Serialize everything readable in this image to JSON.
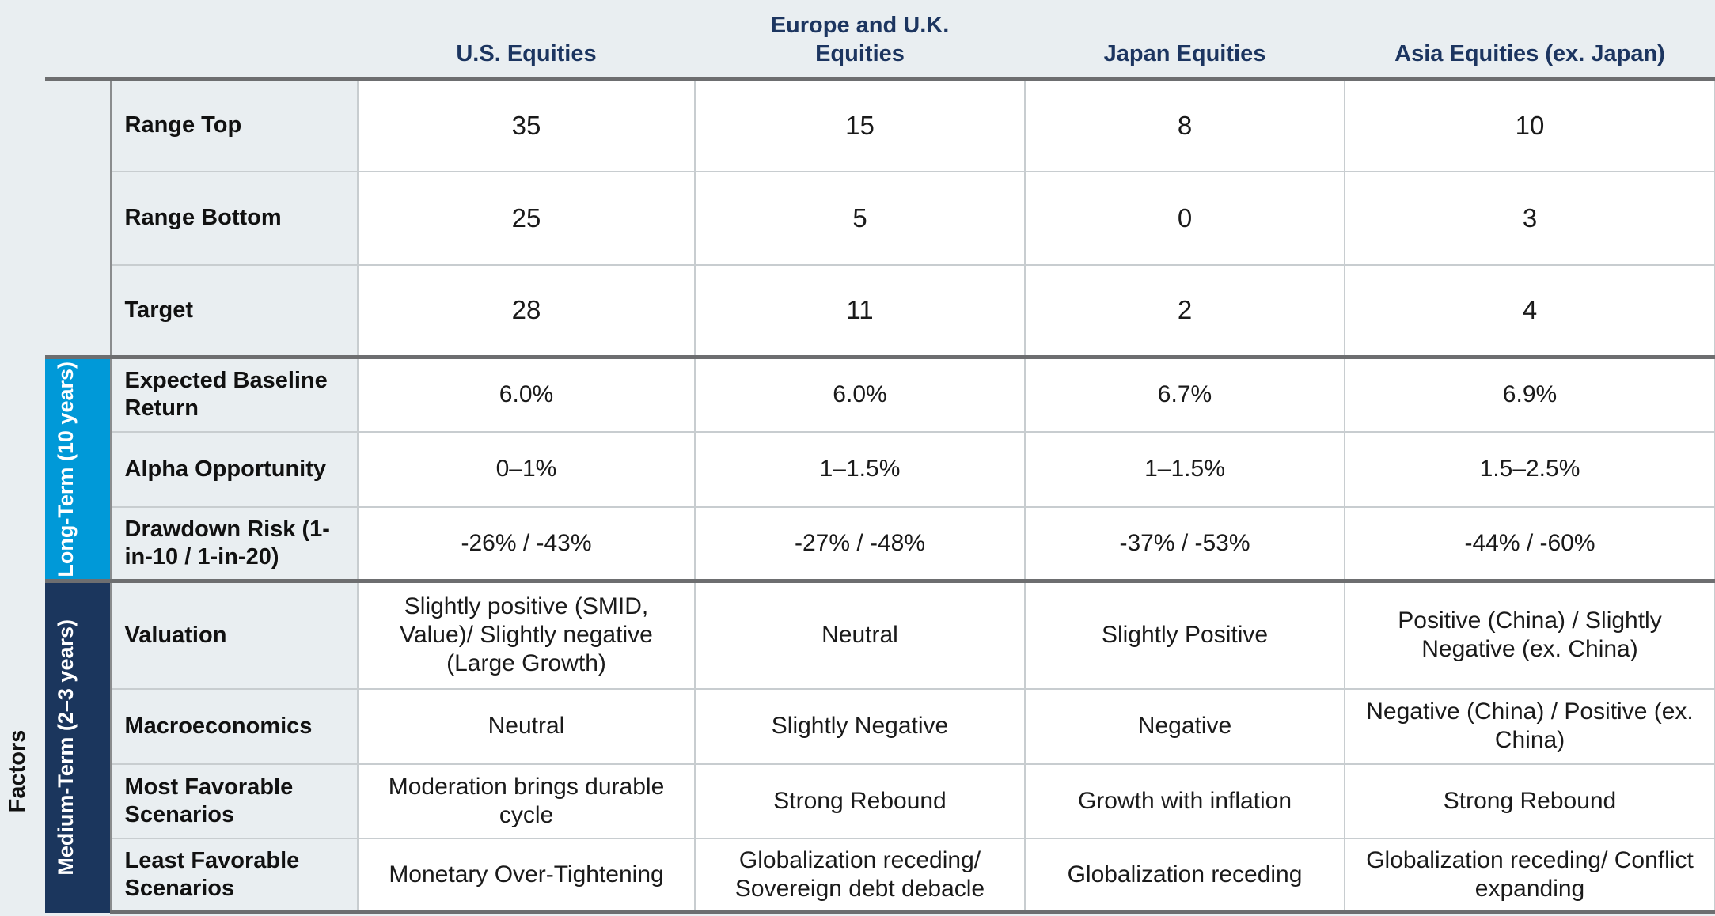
{
  "columns": [
    "U.S. Equities",
    "Europe and U.K. Equities",
    "Japan Equities",
    "Asia Equities (ex. Japan)"
  ],
  "axis_label": "Factors",
  "groups": {
    "long_term": "Long-Term (10 years)",
    "medium_term": "Medium-Term (2–3 years)"
  },
  "colors": {
    "long_term": "#0099d8",
    "medium_term": "#1b365d",
    "header_text": "#1c3560",
    "background": "#e9eef1"
  },
  "rows": [
    {
      "label": "Range Top",
      "values": [
        "35",
        "15",
        "8",
        "10"
      ]
    },
    {
      "label": "Range Bottom",
      "values": [
        "25",
        "5",
        "0",
        "3"
      ]
    },
    {
      "label": "Target",
      "values": [
        "28",
        "11",
        "2",
        "4"
      ]
    },
    {
      "label": "Expected Baseline Return",
      "values": [
        "6.0%",
        "6.0%",
        "6.7%",
        "6.9%"
      ]
    },
    {
      "label": "Alpha Opportunity",
      "values": [
        "0–1%",
        "1–1.5%",
        "1–1.5%",
        "1.5–2.5%"
      ]
    },
    {
      "label": "Drawdown Risk (1-in-10 / 1-in-20)",
      "values": [
        "-26% / -43%",
        "-27% / -48%",
        "-37% / -53%",
        "-44% / -60%"
      ]
    },
    {
      "label": "Valuation",
      "values": [
        "Slightly positive (SMID, Value)/ Slightly negative (Large Growth)",
        "Neutral",
        "Slightly Positive",
        "Positive (China) / Slightly Negative (ex. China)"
      ]
    },
    {
      "label": "Macroeconomics",
      "values": [
        "Neutral",
        "Slightly Negative",
        "Negative",
        "Negative (China) / Positive (ex. China)"
      ]
    },
    {
      "label": "Most Favorable Scenarios",
      "values": [
        "Moderation brings durable cycle",
        "Strong Rebound",
        "Growth with inflation",
        "Strong Rebound"
      ]
    },
    {
      "label": "Least Favorable Scenarios",
      "values": [
        "Monetary Over-Tightening",
        "Globalization receding/ Sovereign debt debacle",
        "Globalization receding",
        "Globalization receding/ Conflict expanding"
      ]
    }
  ]
}
